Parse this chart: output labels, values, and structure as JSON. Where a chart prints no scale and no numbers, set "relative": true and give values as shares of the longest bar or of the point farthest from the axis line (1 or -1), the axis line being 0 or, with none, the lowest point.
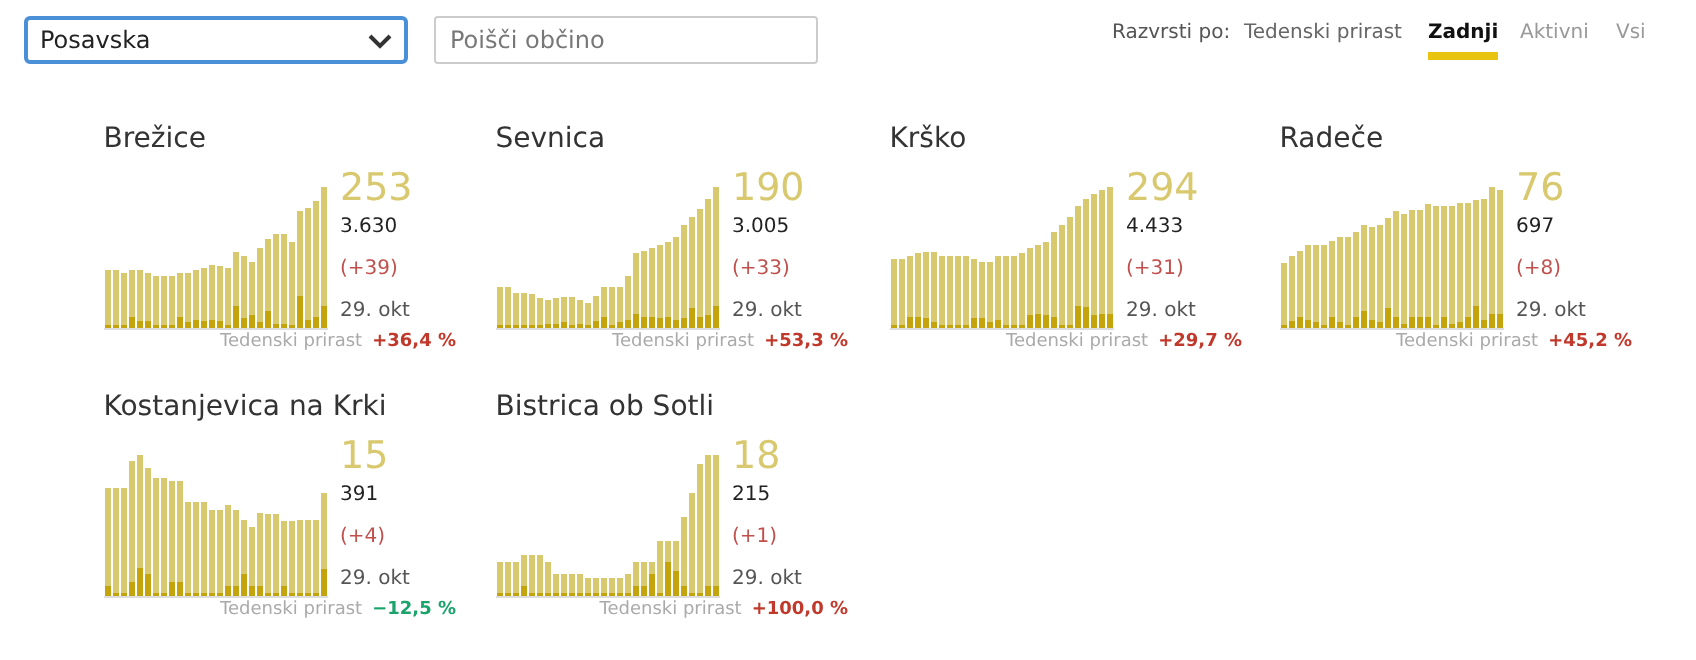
{
  "chart_data": [
    {
      "type": "other",
      "annotations": [
        "Posavska",
        "Poišči občino",
        "Razvrsti po:",
        "Tedenski prirast",
        "Zadnji",
        "Aktivni",
        "Vsi"
      ]
    },
    {
      "type": "bar",
      "title": "Brežice",
      "relative": true,
      "stacked": true,
      "categories": [
        null,
        null,
        null,
        null,
        null,
        null,
        null,
        null,
        null,
        null,
        null,
        null,
        null,
        null,
        null,
        null,
        null,
        null,
        null,
        null,
        null,
        null,
        null,
        null,
        null,
        null,
        null,
        null
      ],
      "series": [
        {
          "color": "#c4a40a",
          "values": [
            0.02,
            0.02,
            0.02,
            0.08,
            0.05,
            0.05,
            0.02,
            0.02,
            0.02,
            0.08,
            0.04,
            0.06,
            0.05,
            0.06,
            0.05,
            0.02,
            0.16,
            0.07,
            0.09,
            0.04,
            0.12,
            0.03,
            0.03,
            0.02,
            0.23,
            0.06,
            0.08,
            0.16
          ]
        },
        {
          "color": "#d8c86e",
          "values": [
            0.39,
            0.39,
            0.37,
            0.33,
            0.36,
            0.34,
            0.35,
            0.35,
            0.35,
            0.31,
            0.35,
            0.35,
            0.38,
            0.39,
            0.39,
            0.41,
            0.38,
            0.44,
            0.38,
            0.53,
            0.51,
            0.64,
            0.64,
            0.59,
            0.6,
            0.79,
            0.82,
            0.84
          ]
        }
      ],
      "annotations": [
        "253",
        "3.630",
        "(+39)",
        "29. okt",
        "Tedenski prirast",
        "+36,4 %"
      ]
    },
    {
      "type": "bar",
      "title": "Sevnica",
      "relative": true,
      "stacked": true,
      "categories": [
        null,
        null,
        null,
        null,
        null,
        null,
        null,
        null,
        null,
        null,
        null,
        null,
        null,
        null,
        null,
        null,
        null,
        null,
        null,
        null,
        null,
        null,
        null,
        null,
        null,
        null,
        null,
        null
      ],
      "series": [
        {
          "color": "#c4a40a",
          "values": [
            0.02,
            0.02,
            0.02,
            0.02,
            0.02,
            0.02,
            0.03,
            0.03,
            0.04,
            0.02,
            0.03,
            0.02,
            0.05,
            0.08,
            0.02,
            0.04,
            0.06,
            0.1,
            0.08,
            0.08,
            0.07,
            0.08,
            0.06,
            0.07,
            0.14,
            0.08,
            0.09,
            0.16
          ]
        },
        {
          "color": "#d8c86e",
          "values": [
            0.27,
            0.27,
            0.23,
            0.23,
            0.22,
            0.19,
            0.17,
            0.18,
            0.18,
            0.2,
            0.17,
            0.16,
            0.18,
            0.21,
            0.27,
            0.25,
            0.31,
            0.43,
            0.47,
            0.49,
            0.52,
            0.53,
            0.59,
            0.66,
            0.65,
            0.77,
            0.83,
            0.84
          ]
        }
      ],
      "annotations": [
        "190",
        "3.005",
        "(+33)",
        "29. okt",
        "Tedenski prirast",
        "+53,3 %"
      ]
    },
    {
      "type": "bar",
      "title": "Krško",
      "relative": true,
      "stacked": true,
      "categories": [
        null,
        null,
        null,
        null,
        null,
        null,
        null,
        null,
        null,
        null,
        null,
        null,
        null,
        null,
        null,
        null,
        null,
        null,
        null,
        null,
        null,
        null,
        null,
        null,
        null,
        null,
        null,
        null
      ],
      "series": [
        {
          "color": "#c4a40a",
          "values": [
            0.02,
            0.02,
            0.08,
            0.08,
            0.07,
            0.04,
            0.02,
            0.02,
            0.02,
            0.02,
            0.07,
            0.07,
            0.04,
            0.06,
            0.02,
            0.02,
            0.02,
            0.09,
            0.1,
            0.09,
            0.08,
            0.02,
            0.02,
            0.16,
            0.15,
            0.09,
            0.1,
            0.1
          ]
        },
        {
          "color": "#d8c86e",
          "values": [
            0.47,
            0.47,
            0.43,
            0.45,
            0.47,
            0.5,
            0.49,
            0.49,
            0.49,
            0.49,
            0.42,
            0.4,
            0.43,
            0.45,
            0.49,
            0.49,
            0.51,
            0.48,
            0.49,
            0.52,
            0.6,
            0.71,
            0.77,
            0.71,
            0.77,
            0.86,
            0.88,
            0.9
          ]
        }
      ],
      "annotations": [
        "294",
        "4.433",
        "(+31)",
        "29. okt",
        "Tedenski prirast",
        "+29,7 %"
      ]
    },
    {
      "type": "bar",
      "title": "Radeče",
      "relative": true,
      "stacked": true,
      "categories": [
        null,
        null,
        null,
        null,
        null,
        null,
        null,
        null,
        null,
        null,
        null,
        null,
        null,
        null,
        null,
        null,
        null,
        null,
        null,
        null,
        null,
        null,
        null,
        null,
        null,
        null,
        null,
        null
      ],
      "series": [
        {
          "color": "#c4a40a",
          "values": [
            0.02,
            0.05,
            0.08,
            0.06,
            0.04,
            0.02,
            0.08,
            0.04,
            0.02,
            0.08,
            0.12,
            0.06,
            0.04,
            0.14,
            0.08,
            0.03,
            0.08,
            0.08,
            0.08,
            0.02,
            0.08,
            0.03,
            0.04,
            0.08,
            0.16,
            0.06,
            0.1,
            0.1
          ]
        },
        {
          "color": "#d8c86e",
          "values": [
            0.44,
            0.46,
            0.47,
            0.53,
            0.55,
            0.57,
            0.54,
            0.61,
            0.63,
            0.6,
            0.61,
            0.66,
            0.69,
            0.64,
            0.75,
            0.78,
            0.76,
            0.76,
            0.8,
            0.85,
            0.79,
            0.84,
            0.85,
            0.81,
            0.75,
            0.86,
            0.9,
            0.88
          ]
        }
      ],
      "annotations": [
        "76",
        "697",
        "(+8)",
        "29. okt",
        "Tedenski prirast",
        "+45,2 %"
      ]
    },
    {
      "type": "bar",
      "title": "Kostanjevica na Krki",
      "relative": true,
      "stacked": true,
      "categories": [
        null,
        null,
        null,
        null,
        null,
        null,
        null,
        null,
        null,
        null,
        null,
        null,
        null,
        null,
        null,
        null,
        null,
        null,
        null,
        null,
        null,
        null,
        null,
        null,
        null,
        null,
        null,
        null
      ],
      "series": [
        {
          "color": "#c4a40a",
          "values": [
            0.07,
            0.02,
            0.02,
            0.1,
            0.2,
            0.16,
            0.02,
            0.02,
            0.1,
            0.1,
            0.02,
            0.02,
            0.02,
            0.02,
            0.02,
            0.07,
            0.07,
            0.16,
            0.07,
            0.07,
            0.02,
            0.02,
            0.07,
            0.02,
            0.02,
            0.02,
            0.02,
            0.19
          ]
        },
        {
          "color": "#d8c86e",
          "values": [
            0.7,
            0.75,
            0.75,
            0.86,
            0.8,
            0.75,
            0.82,
            0.82,
            0.72,
            0.72,
            0.65,
            0.65,
            0.65,
            0.59,
            0.59,
            0.58,
            0.54,
            0.38,
            0.42,
            0.52,
            0.56,
            0.56,
            0.46,
            0.51,
            0.52,
            0.52,
            0.52,
            0.54
          ]
        }
      ],
      "annotations": [
        "15",
        "391",
        "(+4)",
        "29. okt",
        "Tedenski prirast",
        "−12,5 %"
      ]
    },
    {
      "type": "bar",
      "title": "Bistrica ob Sotli",
      "relative": true,
      "stacked": true,
      "categories": [
        null,
        null,
        null,
        null,
        null,
        null,
        null,
        null,
        null,
        null,
        null,
        null,
        null,
        null,
        null,
        null,
        null,
        null,
        null,
        null,
        null,
        null,
        null,
        null,
        null,
        null,
        null,
        null
      ],
      "series": [
        {
          "color": "#c4a40a",
          "values": [
            0.02,
            0.02,
            0.02,
            0.07,
            0.02,
            0.02,
            0.02,
            0.02,
            0.02,
            0.02,
            0.02,
            0.02,
            0.02,
            0.02,
            0.02,
            0.02,
            0.02,
            0.07,
            0.07,
            0.16,
            0.02,
            0.24,
            0.18,
            0.07,
            0.02,
            0.02,
            0.07,
            0.07
          ]
        },
        {
          "color": "#d8c86e",
          "values": [
            0.22,
            0.22,
            0.22,
            0.22,
            0.27,
            0.27,
            0.22,
            0.14,
            0.14,
            0.14,
            0.14,
            0.11,
            0.11,
            0.11,
            0.11,
            0.11,
            0.14,
            0.17,
            0.17,
            0.08,
            0.37,
            0.15,
            0.21,
            0.49,
            0.71,
            0.92,
            0.93,
            0.93
          ]
        }
      ],
      "annotations": [
        "18",
        "215",
        "(+1)",
        "29. okt",
        "Tedenski prirast",
        "+100,0 %"
      ]
    }
  ]
}
